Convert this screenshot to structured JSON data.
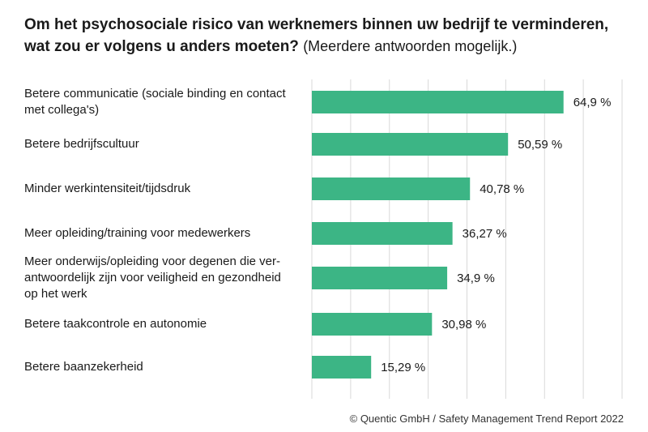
{
  "chart_data": {
    "type": "bar",
    "orientation": "horizontal",
    "title": "Om het psychosociale risico van werknemers binnen uw bedrijf te verminderen, wat zou er volgens u anders moeten?",
    "subtitle": "(Meerdere antwoorden mogelijk.)",
    "categories": [
      "Betere communicatie (sociale binding en contact met collega's)",
      "Betere bedrijfscultuur",
      "Minder werkintensiteit/tijdsdruk",
      "Meer opleiding/training voor medewerkers",
      "Meer onderwijs/opleiding voor degenen die verantwoordelijk zijn voor veiligheid en gezondheid op het werk",
      "Betere taakcontrole en autonomie",
      "Betere baanzekerheid"
    ],
    "category_display_lines": [
      [
        "Betere communicatie (sociale binding en contact",
        "met collega's)"
      ],
      [
        "Betere bedrijfscultuur"
      ],
      [
        "Minder werkintensiteit/tijdsdruk"
      ],
      [
        "Meer opleiding/training voor medewerkers"
      ],
      [
        "Meer onderwijs/opleiding voor degenen die ver-",
        "antwoordelijk zijn voor veiligheid en gezondheid",
        "op het werk"
      ],
      [
        "Betere taakcontrole en autonomie"
      ],
      [
        "Betere baanzekerheid"
      ]
    ],
    "values": [
      64.9,
      50.59,
      40.78,
      36.27,
      34.9,
      30.98,
      15.29
    ],
    "value_labels": [
      "64,9 %",
      "50,59 %",
      "40,78 %",
      "36,27 %",
      "34,9 %",
      "30,98 %",
      "15,29 %"
    ],
    "unit": "%",
    "xlim": [
      0,
      80
    ],
    "grid": true,
    "bar_color": "#3cb585",
    "grid_color": "#d9d9d9"
  },
  "footer": "© Quentic GmbH / Safety Management Trend Report 2022"
}
